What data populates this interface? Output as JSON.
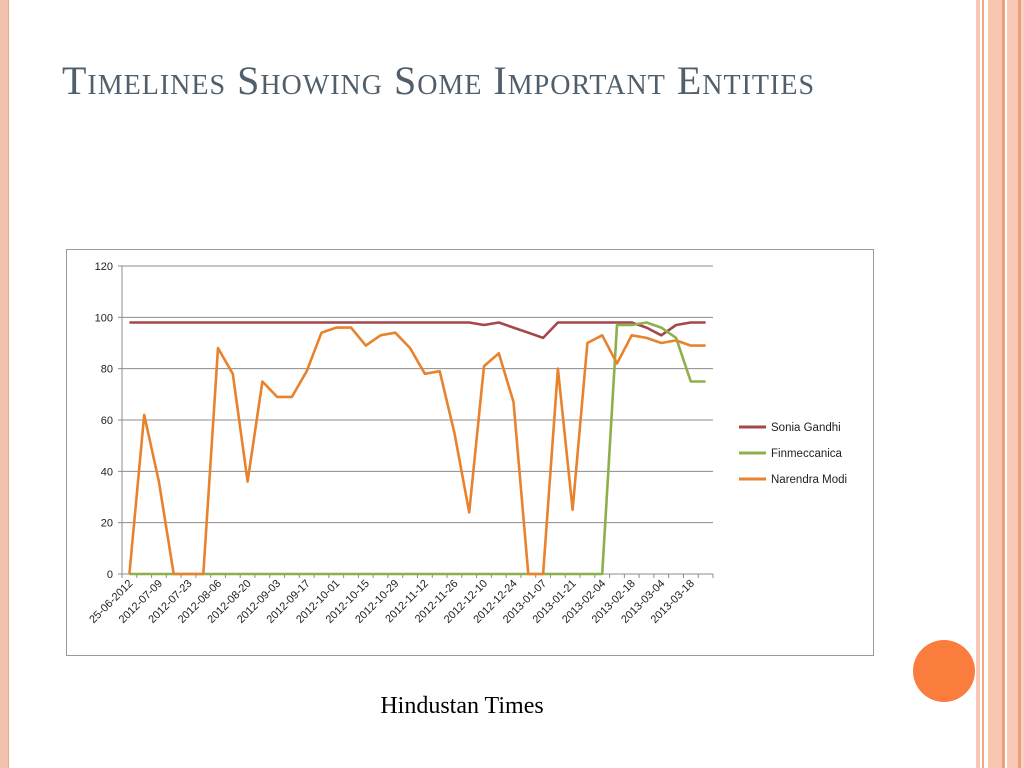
{
  "slide": {
    "title": "Timelines Showing Some Important Entities",
    "caption": "Hindustan Times"
  },
  "theme": {
    "title_color": "#505f6b",
    "border_color": "#f4c3ad",
    "accent_circle": "#fb7d3d"
  },
  "chart_data": {
    "type": "line",
    "title": "",
    "xlabel": "",
    "ylabel": "",
    "ylim": [
      0,
      120
    ],
    "yticks": [
      0,
      20,
      40,
      60,
      80,
      100,
      120
    ],
    "grid": true,
    "legend_position": "right",
    "x": [
      "25-06-2012",
      "2012-07-02",
      "2012-07-09",
      "2012-07-16",
      "2012-07-23",
      "2012-07-30",
      "2012-08-06",
      "2012-08-13",
      "2012-08-20",
      "2012-08-27",
      "2012-09-03",
      "2012-09-10",
      "2012-09-17",
      "2012-09-24",
      "2012-10-01",
      "2012-10-08",
      "2012-10-15",
      "2012-10-22",
      "2012-10-29",
      "2012-11-05",
      "2012-11-12",
      "2012-11-19",
      "2012-11-26",
      "2012-12-03",
      "2012-12-10",
      "2012-12-17",
      "2012-12-24",
      "2012-12-31",
      "2013-01-07",
      "2013-01-14",
      "2013-01-21",
      "2013-01-28",
      "2013-02-04",
      "2013-02-11",
      "2013-02-18",
      "2013-02-25",
      "2013-03-04",
      "2013-03-11",
      "2013-03-18",
      "2013-03-25"
    ],
    "tick_labels": [
      "25-06-2012",
      "2012-07-09",
      "2012-07-23",
      "2012-08-06",
      "2012-08-20",
      "2012-09-03",
      "2012-09-17",
      "2012-10-01",
      "2012-10-15",
      "2012-10-29",
      "2012-11-12",
      "2012-11-26",
      "2012-12-10",
      "2012-12-24",
      "2013-01-07",
      "2013-01-21",
      "2013-02-04",
      "2013-02-18",
      "2013-03-04",
      "2013-03-18"
    ],
    "series": [
      {
        "name": "Sonia Gandhi",
        "color": "#a4474a",
        "values": [
          98,
          98,
          98,
          98,
          98,
          98,
          98,
          98,
          98,
          98,
          98,
          98,
          98,
          98,
          98,
          98,
          98,
          98,
          98,
          98,
          98,
          98,
          98,
          98,
          97,
          98,
          96,
          94,
          92,
          98,
          98,
          98,
          98,
          98,
          98,
          96,
          93,
          97,
          98,
          98
        ]
      },
      {
        "name": "Finmeccanica",
        "color": "#8db04b",
        "values": [
          0,
          0,
          0,
          0,
          0,
          0,
          0,
          0,
          0,
          0,
          0,
          0,
          0,
          0,
          0,
          0,
          0,
          0,
          0,
          0,
          0,
          0,
          0,
          0,
          0,
          0,
          0,
          0,
          0,
          0,
          0,
          0,
          0,
          97,
          97,
          98,
          96,
          92,
          75,
          75
        ]
      },
      {
        "name": "Narendra Modi",
        "color": "#e8822c",
        "values": [
          0,
          62,
          36,
          0,
          0,
          0,
          88,
          78,
          36,
          75,
          69,
          69,
          79,
          94,
          96,
          96,
          89,
          93,
          94,
          88,
          78,
          79,
          55,
          24,
          81,
          86,
          67,
          0,
          0,
          80,
          25,
          90,
          93,
          82,
          93,
          92,
          90,
          91,
          89,
          89
        ]
      }
    ]
  }
}
